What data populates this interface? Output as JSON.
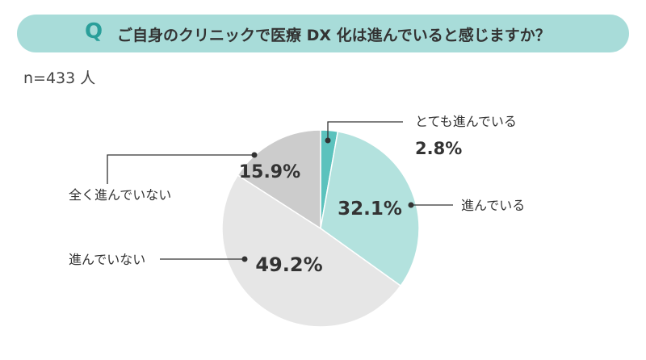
{
  "header": {
    "q_label": "Q",
    "question": "ご自身のクリニックで医療 DX 化は進んでいると感じますか？",
    "sample_size": "n=433 人"
  },
  "chart_data": {
    "type": "pie",
    "title": "ご自身のクリニックで医療 DX 化は進んでいると感じますか？",
    "slices": [
      {
        "label": "とても進んでいる",
        "value": 2.8,
        "display": "2.8%",
        "color": "#5bc2bd"
      },
      {
        "label": "進んでいる",
        "value": 32.1,
        "display": "32.1%",
        "color": "#b3e2de"
      },
      {
        "label": "進んでいない",
        "value": 49.2,
        "display": "49.2%",
        "color": "#e6e6e6"
      },
      {
        "label": "全く進んでいない",
        "value": 15.9,
        "display": "15.9%",
        "color": "#cccccc"
      }
    ],
    "start_angle_deg": 0,
    "direction": "clockwise"
  }
}
